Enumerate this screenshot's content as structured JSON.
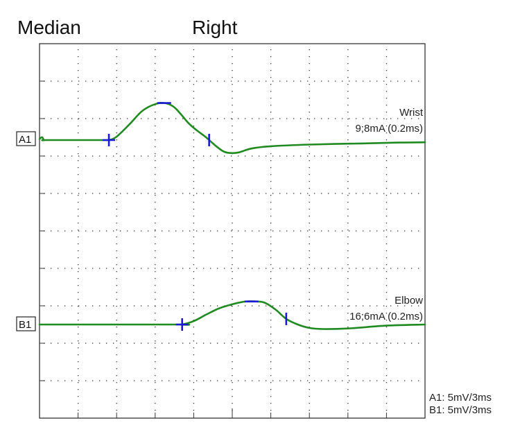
{
  "chart_data": {
    "type": "line",
    "title_left": "Median",
    "title_right": "Right",
    "grid": "dotted",
    "xlim": [
      0,
      30
    ],
    "time_per_division_ms": 3,
    "series": [
      {
        "name": "A1",
        "site": "Wrist",
        "stimulus": "9;8mA (0.2ms)",
        "sensitivity": "A1: 5mV/3ms",
        "baseline_mv": 0,
        "color": "#1f8a1f",
        "points": [
          [
            0,
            0.1
          ],
          [
            0.2,
            0.25
          ],
          [
            0.35,
            0
          ],
          [
            0.6,
            0
          ],
          [
            5,
            0
          ],
          [
            5.4,
            0
          ],
          [
            6,
            0.3
          ],
          [
            7,
            1.4
          ],
          [
            8,
            2.6
          ],
          [
            9,
            3.2
          ],
          [
            9.7,
            3.3
          ],
          [
            10.4,
            3.0
          ],
          [
            11,
            2.3
          ],
          [
            11.6,
            1.5
          ],
          [
            12.2,
            0.9
          ],
          [
            12.9,
            0.3
          ],
          [
            13.7,
            -0.5
          ],
          [
            14.3,
            -1.0
          ],
          [
            14.8,
            -1.15
          ],
          [
            15.5,
            -1.1
          ],
          [
            16.5,
            -0.75
          ],
          [
            18,
            -0.55
          ],
          [
            21,
            -0.4
          ],
          [
            25,
            -0.3
          ],
          [
            28,
            -0.22
          ],
          [
            30,
            -0.2
          ]
        ],
        "markers": [
          {
            "type": "onset",
            "t": 5.4
          },
          {
            "type": "peak",
            "t": 9.7
          },
          {
            "type": "end",
            "t": 13.2
          }
        ]
      },
      {
        "name": "B1",
        "site": "Elbow",
        "stimulus": "16;6mA (0.2ms)",
        "sensitivity": "B1: 5mV/3ms",
        "baseline_mv": 0,
        "color": "#1f8a1f",
        "points": [
          [
            0,
            0
          ],
          [
            10.8,
            0
          ],
          [
            11.1,
            0
          ],
          [
            12,
            0.3
          ],
          [
            13,
            0.9
          ],
          [
            14,
            1.45
          ],
          [
            15,
            1.8
          ],
          [
            16,
            2.05
          ],
          [
            17,
            2.05
          ],
          [
            17.6,
            1.9
          ],
          [
            18.4,
            1.3
          ],
          [
            19.2,
            0.5
          ],
          [
            20.1,
            0
          ],
          [
            21,
            -0.3
          ],
          [
            22,
            -0.4
          ],
          [
            24,
            -0.35
          ],
          [
            27,
            -0.1
          ],
          [
            30,
            0
          ]
        ],
        "markers": [
          {
            "type": "onset",
            "t": 11.1
          },
          {
            "type": "peak",
            "t": 16.5
          },
          {
            "type": "end",
            "t": 19.2
          }
        ]
      }
    ]
  }
}
